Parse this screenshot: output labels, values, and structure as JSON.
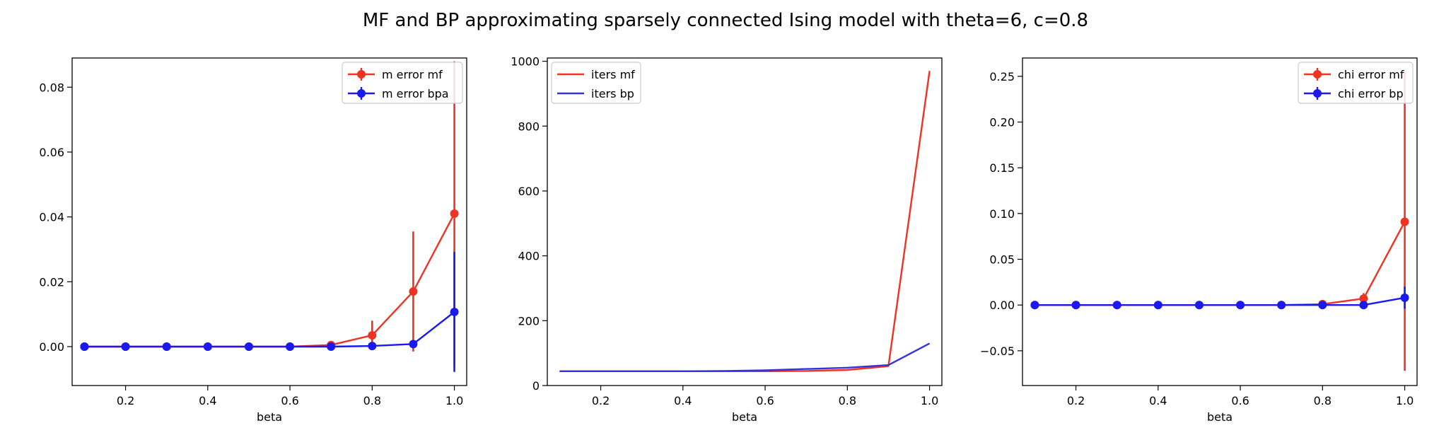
{
  "suptitle": "MF and BP approximating sparsely connected Ising model with theta=6, c=0.8",
  "colors": {
    "mf": "#ee3322",
    "bp": "#1a1aee",
    "bp_line": "#3333dd"
  },
  "chart_data": [
    {
      "type": "line",
      "xlabel": "beta",
      "ylabel": "",
      "xlim": [
        0.07,
        1.03
      ],
      "ylim": [
        -0.012,
        0.089
      ],
      "xticks": [
        0.2,
        0.4,
        0.6,
        0.8,
        1.0
      ],
      "xtick_labels": [
        "0.2",
        "0.4",
        "0.6",
        "0.8",
        "1.0"
      ],
      "yticks": [
        0.0,
        0.02,
        0.04,
        0.06,
        0.08
      ],
      "ytick_labels": [
        "0.00",
        "0.02",
        "0.04",
        "0.06",
        "0.08"
      ],
      "legend_position": "top-right",
      "x": [
        0.1,
        0.2,
        0.3,
        0.4,
        0.5,
        0.6,
        0.7,
        0.8,
        0.9,
        1.0
      ],
      "series": [
        {
          "name": "m error mf",
          "color": "mf",
          "marker": true,
          "values": [
            0,
            0,
            0,
            0,
            0,
            0,
            0.0005,
            0.0035,
            0.017,
            0.041
          ],
          "err": [
            0,
            0,
            0,
            0,
            0,
            0,
            0.0005,
            0.0045,
            0.0185,
            0.047
          ]
        },
        {
          "name": "m error bpa",
          "color": "bp",
          "marker": true,
          "values": [
            0,
            0,
            0,
            0,
            0,
            0,
            0,
            0.0002,
            0.0008,
            0.0107
          ],
          "err": [
            0,
            0,
            0,
            0,
            0,
            0,
            0,
            0.0003,
            0.0012,
            0.0185
          ]
        }
      ]
    },
    {
      "type": "line",
      "xlabel": "beta",
      "ylabel": "",
      "xlim": [
        0.07,
        1.03
      ],
      "ylim": [
        0,
        1010
      ],
      "xticks": [
        0.2,
        0.4,
        0.6,
        0.8,
        1.0
      ],
      "xtick_labels": [
        "0.2",
        "0.4",
        "0.6",
        "0.8",
        "1.0"
      ],
      "yticks": [
        0,
        200,
        400,
        600,
        800,
        1000
      ],
      "ytick_labels": [
        "0",
        "200",
        "400",
        "600",
        "800",
        "1000"
      ],
      "legend_position": "top-left",
      "x": [
        0.1,
        0.2,
        0.3,
        0.4,
        0.5,
        0.6,
        0.7,
        0.8,
        0.9,
        1.0
      ],
      "series": [
        {
          "name": "iters mf",
          "color": "mf",
          "marker": false,
          "values": [
            44,
            44,
            44,
            44,
            44,
            44,
            45,
            48,
            60,
            970
          ]
        },
        {
          "name": "iters bp",
          "color": "bp_line",
          "marker": false,
          "values": [
            44,
            44,
            44,
            44,
            45,
            47,
            51,
            55,
            63,
            130
          ]
        }
      ]
    },
    {
      "type": "line",
      "xlabel": "beta",
      "ylabel": "",
      "xlim": [
        0.07,
        1.03
      ],
      "ylim": [
        -0.088,
        0.27
      ],
      "xticks": [
        0.2,
        0.4,
        0.6,
        0.8,
        1.0
      ],
      "xtick_labels": [
        "0.2",
        "0.4",
        "0.6",
        "0.8",
        "1.0"
      ],
      "yticks": [
        -0.05,
        0.0,
        0.05,
        0.1,
        0.15,
        0.2,
        0.25
      ],
      "ytick_labels": [
        "−0.05",
        "0.00",
        "0.05",
        "0.10",
        "0.15",
        "0.20",
        "0.25"
      ],
      "legend_position": "top-right",
      "x": [
        0.1,
        0.2,
        0.3,
        0.4,
        0.5,
        0.6,
        0.7,
        0.8,
        0.9,
        1.0
      ],
      "series": [
        {
          "name": "chi error mf",
          "color": "mf",
          "marker": true,
          "values": [
            0,
            0,
            0,
            0,
            0,
            0,
            0,
            0.001,
            0.007,
            0.091
          ],
          "err": [
            0,
            0,
            0,
            0,
            0,
            0,
            0,
            0.001,
            0.006,
            0.163
          ]
        },
        {
          "name": "chi error bp",
          "color": "bp",
          "marker": true,
          "values": [
            0,
            0,
            0,
            0,
            0,
            0,
            0,
            0,
            0,
            0.008
          ],
          "err": [
            0,
            0,
            0,
            0,
            0,
            0,
            0,
            0,
            0,
            0.012
          ]
        }
      ]
    }
  ]
}
